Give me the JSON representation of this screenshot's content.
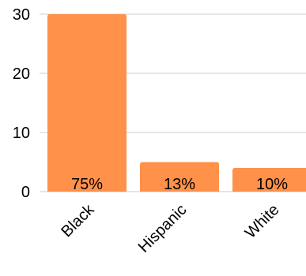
{
  "chart_data": {
    "type": "bar",
    "categories": [
      "Black",
      "Hispanic",
      "White"
    ],
    "values": [
      30,
      5,
      4
    ],
    "annotations": [
      "75%",
      "13%",
      "10%"
    ],
    "color": "#ff914a",
    "ylim": [
      0,
      30
    ],
    "yticks": [
      0,
      10,
      20,
      30
    ],
    "grid": true
  }
}
